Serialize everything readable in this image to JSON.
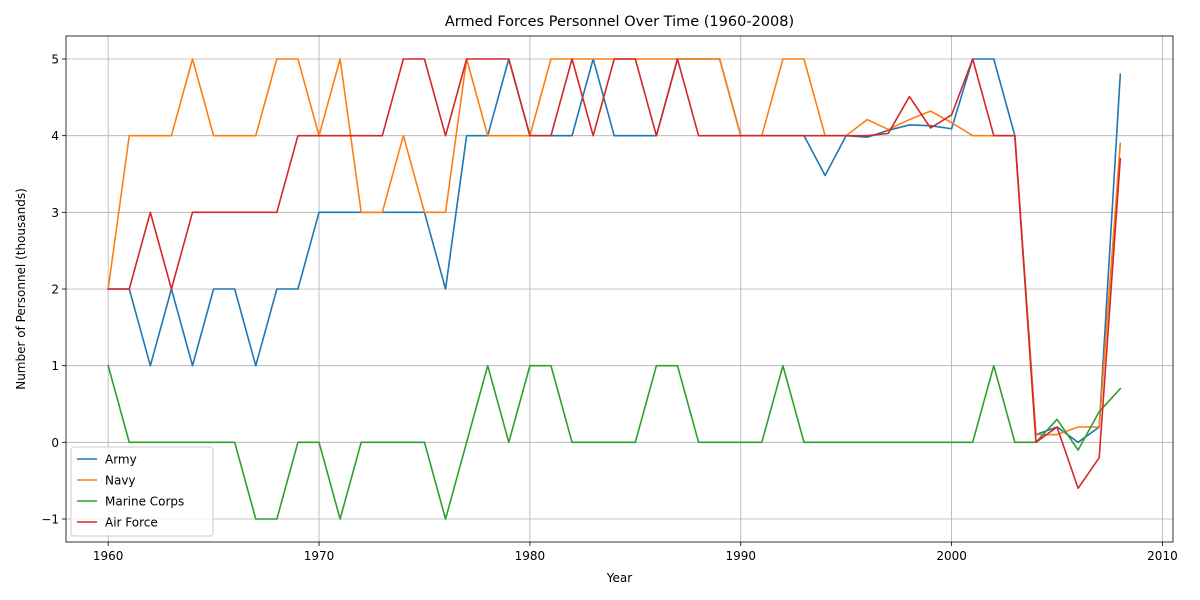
{
  "chart_data": {
    "type": "line",
    "title": "Armed Forces Personnel Over Time (1960-2008)",
    "xlabel": "Year",
    "ylabel": "Number of Personnel (thousands)",
    "xlim": [
      1958,
      2010.5
    ],
    "ylim": [
      -1.3,
      5.3
    ],
    "xticks": [
      1960,
      1970,
      1980,
      1990,
      2000,
      2010
    ],
    "yticks": [
      -1,
      0,
      1,
      2,
      3,
      4,
      5
    ],
    "grid": true,
    "legend_position": "lower-left",
    "x": [
      1960,
      1961,
      1962,
      1963,
      1964,
      1965,
      1966,
      1967,
      1968,
      1969,
      1970,
      1971,
      1972,
      1973,
      1974,
      1975,
      1976,
      1977,
      1978,
      1979,
      1980,
      1981,
      1982,
      1983,
      1984,
      1985,
      1986,
      1987,
      1988,
      1989,
      1990,
      1991,
      1992,
      1993,
      1994,
      1995,
      1996,
      1997,
      1998,
      1999,
      2000,
      2001,
      2002,
      2003,
      2004,
      2005,
      2006,
      2007,
      2008
    ],
    "series": [
      {
        "name": "Army",
        "color": "#1f77b4",
        "values": [
          2,
          2,
          1,
          2,
          1,
          2,
          2,
          1,
          2,
          2,
          3,
          3,
          3,
          3,
          3,
          3,
          2,
          4,
          4,
          5,
          4,
          4,
          4,
          5,
          4,
          4,
          4,
          5,
          5,
          5,
          4,
          4,
          4,
          4,
          3.48,
          4,
          3.98,
          4.07,
          4.14,
          4.13,
          4.09,
          5,
          5,
          4,
          0.1,
          0.2,
          0,
          0.2,
          4.8
        ]
      },
      {
        "name": "Navy",
        "color": "#ff7f0e",
        "values": [
          2,
          4,
          4,
          4,
          5,
          4,
          4,
          4,
          5,
          5,
          4,
          5,
          3,
          3,
          4,
          3,
          3,
          5,
          4,
          4,
          4,
          5,
          5,
          5,
          5,
          5,
          5,
          5,
          5,
          5,
          4,
          4,
          5,
          5,
          4,
          4,
          4.21,
          4.08,
          4.21,
          4.32,
          4.17,
          4,
          4,
          4,
          0.1,
          0.1,
          0.2,
          0.2,
          3.9
        ]
      },
      {
        "name": "Marine Corps",
        "color": "#2ca02c",
        "values": [
          1,
          0,
          0,
          0,
          0,
          0,
          0,
          -1,
          -1,
          0,
          0,
          -1,
          0,
          0,
          0,
          0,
          -1,
          0,
          1,
          0,
          1,
          1,
          0,
          0,
          0,
          0,
          1,
          1,
          0,
          0,
          0,
          0,
          1,
          0,
          0,
          0,
          0,
          0,
          0,
          0,
          0,
          0,
          1,
          0,
          0,
          0.3,
          -0.1,
          0.4,
          0.7
        ]
      },
      {
        "name": "Air Force",
        "color": "#d62728",
        "values": [
          2,
          2,
          3,
          2,
          3,
          3,
          3,
          3,
          3,
          4,
          4,
          4,
          4,
          4,
          5,
          5,
          4,
          5,
          5,
          5,
          4,
          4,
          5,
          4,
          5,
          5,
          4,
          5,
          4,
          4,
          4,
          4,
          4,
          4,
          4,
          4,
          4,
          4.03,
          4.51,
          4.1,
          4.27,
          5,
          4,
          4,
          0,
          0.2,
          -0.6,
          -0.2,
          3.7
        ]
      }
    ]
  }
}
